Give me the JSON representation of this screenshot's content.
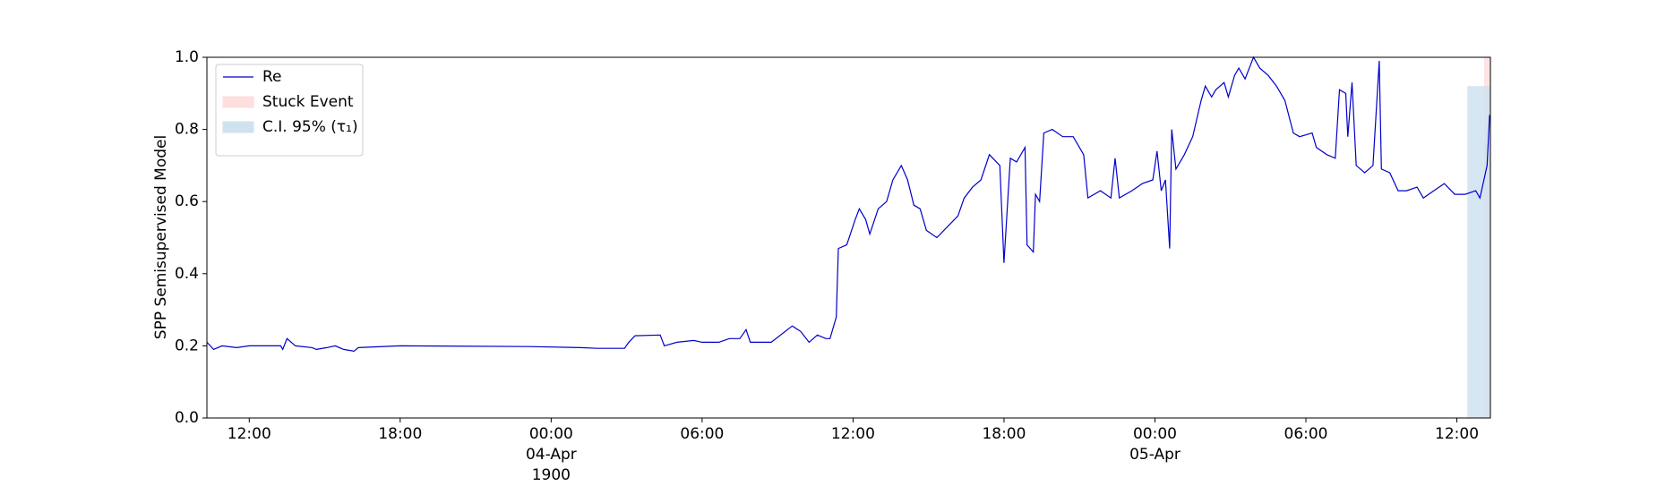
{
  "chart_data": {
    "type": "line",
    "ylabel": "SPP Semisupervised Model",
    "xlim": [
      "1900-04-03T10:19",
      "1900-04-05T13:20"
    ],
    "ylim": [
      0,
      1
    ],
    "yticks": [
      {
        "value": 0,
        "label": "0.0"
      },
      {
        "value": 0.2,
        "label": "0.2"
      },
      {
        "value": 0.4,
        "label": "0.4"
      },
      {
        "value": 0.6,
        "label": "0.6"
      },
      {
        "value": 0.8,
        "label": "0.8"
      },
      {
        "value": 1,
        "label": "1.0"
      }
    ],
    "xticks": [
      {
        "value": "1900-04-03T12:00",
        "label": "12:00"
      },
      {
        "value": "1900-04-03T18:00",
        "label": "18:00"
      },
      {
        "value": "1900-04-04T00:00",
        "label": "00:00\n04-Apr\n1900"
      },
      {
        "value": "1900-04-04T06:00",
        "label": "06:00"
      },
      {
        "value": "1900-04-04T12:00",
        "label": "12:00"
      },
      {
        "value": "1900-04-04T18:00",
        "label": "18:00"
      },
      {
        "value": "1900-04-05T00:00",
        "label": "00:00\n05-Apr"
      },
      {
        "value": "1900-04-05T06:00",
        "label": "06:00"
      },
      {
        "value": "1900-04-05T12:00",
        "label": "12:00"
      }
    ],
    "legend": "upper left",
    "x": [
      "1900-04-03T10:19",
      "1900-04-03T10:35",
      "1900-04-03T10:55",
      "1900-04-03T11:30",
      "1900-04-03T12:00",
      "1900-04-03T13:15",
      "1900-04-03T13:20",
      "1900-04-03T13:30",
      "1900-04-03T13:50",
      "1900-04-03T14:30",
      "1900-04-03T14:40",
      "1900-04-03T15:05",
      "1900-04-03T15:25",
      "1900-04-03T15:45",
      "1900-04-03T16:10",
      "1900-04-03T16:20",
      "1900-04-03T18:00",
      "1900-04-03T23:05",
      "1900-04-04T01:10",
      "1900-04-04T01:50",
      "1900-04-04T02:55",
      "1900-04-04T03:05",
      "1900-04-04T03:20",
      "1900-04-04T04:20",
      "1900-04-04T04:30",
      "1900-04-04T05:00",
      "1900-04-04T05:40",
      "1900-04-04T06:00",
      "1900-04-04T06:40",
      "1900-04-04T07:05",
      "1900-04-04T07:30",
      "1900-04-04T07:45",
      "1900-04-04T07:55",
      "1900-04-04T08:45",
      "1900-04-04T09:35",
      "1900-04-04T09:55",
      "1900-04-04T10:15",
      "1900-04-04T10:35",
      "1900-04-04T10:55",
      "1900-04-04T11:05",
      "1900-04-04T11:20",
      "1900-04-04T11:25",
      "1900-04-04T11:45",
      "1900-04-04T12:05",
      "1900-04-04T12:15",
      "1900-04-04T12:30",
      "1900-04-04T12:40",
      "1900-04-04T13:00",
      "1900-04-04T13:20",
      "1900-04-04T13:35",
      "1900-04-04T13:55",
      "1900-04-04T14:10",
      "1900-04-04T14:25",
      "1900-04-04T14:40",
      "1900-04-04T14:55",
      "1900-04-04T15:20",
      "1900-04-04T15:45",
      "1900-04-04T16:10",
      "1900-04-04T16:25",
      "1900-04-04T16:45",
      "1900-04-04T17:05",
      "1900-04-04T17:25",
      "1900-04-04T17:50",
      "1900-04-04T18:00",
      "1900-04-04T18:15",
      "1900-04-04T18:30",
      "1900-04-04T18:50",
      "1900-04-04T18:55",
      "1900-04-04T19:10",
      "1900-04-04T19:15",
      "1900-04-04T19:25",
      "1900-04-04T19:35",
      "1900-04-04T19:55",
      "1900-04-04T20:20",
      "1900-04-04T20:45",
      "1900-04-04T21:10",
      "1900-04-04T21:20",
      "1900-04-04T21:50",
      "1900-04-04T22:15",
      "1900-04-04T22:25",
      "1900-04-04T22:35",
      "1900-04-04T23:05",
      "1900-04-04T23:30",
      "1900-04-04T23:55",
      "1900-04-05T00:05",
      "1900-04-05T00:15",
      "1900-04-05T00:25",
      "1900-04-05T00:35",
      "1900-04-05T00:40",
      "1900-04-05T00:50",
      "1900-04-05T01:10",
      "1900-04-05T01:30",
      "1900-04-05T01:50",
      "1900-04-05T02:00",
      "1900-04-05T02:15",
      "1900-04-05T02:25",
      "1900-04-05T02:45",
      "1900-04-05T02:55",
      "1900-04-05T03:10",
      "1900-04-05T03:20",
      "1900-04-05T03:35",
      "1900-04-05T03:55",
      "1900-04-05T04:10",
      "1900-04-05T04:30",
      "1900-04-05T04:50",
      "1900-04-05T05:10",
      "1900-04-05T05:30",
      "1900-04-05T05:45",
      "1900-04-05T06:15",
      "1900-04-05T06:25",
      "1900-04-05T06:50",
      "1900-04-05T07:10",
      "1900-04-05T07:20",
      "1900-04-05T07:35",
      "1900-04-05T07:40",
      "1900-04-05T07:50",
      "1900-04-05T08:00",
      "1900-04-05T08:20",
      "1900-04-05T08:40",
      "1900-04-05T08:55",
      "1900-04-05T09:00",
      "1900-04-05T09:20",
      "1900-04-05T09:40",
      "1900-04-05T10:00",
      "1900-04-05T10:25",
      "1900-04-05T10:40",
      "1900-04-05T11:05",
      "1900-04-05T11:30",
      "1900-04-05T11:55",
      "1900-04-05T12:20",
      "1900-04-05T12:45",
      "1900-04-05T12:55",
      "1900-04-05T13:12",
      "1900-04-05T13:18"
    ],
    "series": [
      {
        "name": "Re",
        "color": "#0000cc",
        "values": [
          0.21,
          0.19,
          0.2,
          0.195,
          0.2,
          0.2,
          0.19,
          0.22,
          0.2,
          0.195,
          0.19,
          0.195,
          0.2,
          0.19,
          0.185,
          0.195,
          0.2,
          0.198,
          0.195,
          0.193,
          0.193,
          0.21,
          0.228,
          0.23,
          0.2,
          0.21,
          0.215,
          0.21,
          0.21,
          0.22,
          0.22,
          0.245,
          0.21,
          0.21,
          0.255,
          0.24,
          0.21,
          0.23,
          0.22,
          0.22,
          0.28,
          0.47,
          0.48,
          0.55,
          0.58,
          0.55,
          0.51,
          0.58,
          0.6,
          0.66,
          0.7,
          0.66,
          0.59,
          0.58,
          0.52,
          0.5,
          0.53,
          0.56,
          0.61,
          0.64,
          0.66,
          0.73,
          0.7,
          0.43,
          0.72,
          0.71,
          0.75,
          0.48,
          0.46,
          0.62,
          0.6,
          0.79,
          0.8,
          0.78,
          0.78,
          0.73,
          0.61,
          0.63,
          0.61,
          0.72,
          0.61,
          0.63,
          0.65,
          0.66,
          0.74,
          0.63,
          0.66,
          0.47,
          0.8,
          0.69,
          0.73,
          0.78,
          0.88,
          0.92,
          0.89,
          0.91,
          0.93,
          0.89,
          0.95,
          0.97,
          0.94,
          1.0,
          0.97,
          0.95,
          0.92,
          0.88,
          0.79,
          0.78,
          0.79,
          0.75,
          0.73,
          0.72,
          0.91,
          0.9,
          0.78,
          0.93,
          0.7,
          0.68,
          0.7,
          0.99,
          0.69,
          0.68,
          0.63,
          0.63,
          0.64,
          0.61,
          0.63,
          0.65,
          0.62,
          0.62,
          0.63,
          0.61,
          0.7,
          0.84
        ]
      }
    ],
    "spans": [
      {
        "name": "Stuck Event",
        "color": "#ffdede",
        "x": [
          "1900-04-05T13:05",
          "1900-04-05T13:20"
        ]
      },
      {
        "name": "C.I. 95% (τ₁)",
        "color": "#cfe2f0",
        "x": [
          "1900-04-05T12:25",
          "1900-04-05T13:20"
        ],
        "ylim": [
          0,
          0.92
        ]
      }
    ]
  }
}
